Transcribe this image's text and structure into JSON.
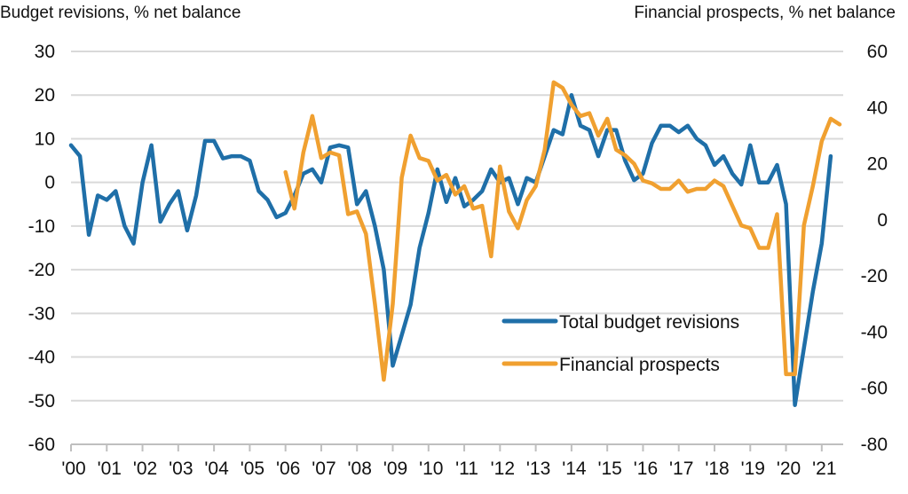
{
  "chart_data": {
    "type": "line",
    "ylabel_left": "Budget revisions, % net balance",
    "ylabel_right": "Financial prospects, % net balance",
    "ylim_left": [
      -60,
      30
    ],
    "ylim_right": [
      -80,
      60
    ],
    "yticks_left": [
      30,
      20,
      10,
      0,
      -10,
      -20,
      -30,
      -40,
      -50,
      -60
    ],
    "yticks_right": [
      60,
      40,
      20,
      0,
      -20,
      -40,
      -60,
      -80
    ],
    "xlim": [
      2000,
      2021.6
    ],
    "xticks": [
      {
        "value": 2000,
        "label": "'00"
      },
      {
        "value": 2001,
        "label": "'01"
      },
      {
        "value": 2002,
        "label": "'02"
      },
      {
        "value": 2003,
        "label": "'03"
      },
      {
        "value": 2004,
        "label": "'04"
      },
      {
        "value": 2005,
        "label": "'05"
      },
      {
        "value": 2006,
        "label": "'06"
      },
      {
        "value": 2007,
        "label": "'07"
      },
      {
        "value": 2008,
        "label": "'08"
      },
      {
        "value": 2009,
        "label": "'09"
      },
      {
        "value": 2010,
        "label": "'10"
      },
      {
        "value": 2011,
        "label": "'11"
      },
      {
        "value": 2012,
        "label": "'12"
      },
      {
        "value": 2013,
        "label": "'13"
      },
      {
        "value": 2014,
        "label": "'14"
      },
      {
        "value": 2015,
        "label": "'15"
      },
      {
        "value": 2016,
        "label": "'16"
      },
      {
        "value": 2017,
        "label": "'17"
      },
      {
        "value": 2018,
        "label": "'18"
      },
      {
        "value": 2019,
        "label": "'19"
      },
      {
        "value": 2020,
        "label": "'20"
      },
      {
        "value": 2021,
        "label": "'21"
      }
    ],
    "grid": "horizontal",
    "legend_position": "lower-right inside plot",
    "series": [
      {
        "name": "Total budget revisions",
        "axis": "left",
        "color": "#1f6fa8",
        "points": [
          [
            2000.0,
            8.5
          ],
          [
            2000.25,
            6
          ],
          [
            2000.5,
            -12
          ],
          [
            2000.75,
            -3
          ],
          [
            2001.0,
            -4
          ],
          [
            2001.25,
            -2
          ],
          [
            2001.5,
            -10
          ],
          [
            2001.75,
            -14
          ],
          [
            2002.0,
            0
          ],
          [
            2002.25,
            8.5
          ],
          [
            2002.5,
            -9
          ],
          [
            2002.75,
            -5
          ],
          [
            2003.0,
            -2
          ],
          [
            2003.25,
            -11
          ],
          [
            2003.5,
            -3
          ],
          [
            2003.75,
            9.5
          ],
          [
            2004.0,
            9.5
          ],
          [
            2004.25,
            5.5
          ],
          [
            2004.5,
            6
          ],
          [
            2004.75,
            6
          ],
          [
            2005.0,
            5
          ],
          [
            2005.25,
            -2
          ],
          [
            2005.5,
            -4
          ],
          [
            2005.75,
            -8
          ],
          [
            2006.0,
            -7
          ],
          [
            2006.25,
            -3
          ],
          [
            2006.5,
            2
          ],
          [
            2006.75,
            3
          ],
          [
            2007.0,
            0
          ],
          [
            2007.25,
            8
          ],
          [
            2007.5,
            8.5
          ],
          [
            2007.75,
            8
          ],
          [
            2008.0,
            -5
          ],
          [
            2008.25,
            -2
          ],
          [
            2008.5,
            -10
          ],
          [
            2008.75,
            -20
          ],
          [
            2009.0,
            -42
          ],
          [
            2009.25,
            -35
          ],
          [
            2009.5,
            -28
          ],
          [
            2009.75,
            -15
          ],
          [
            2010.0,
            -7
          ],
          [
            2010.25,
            3
          ],
          [
            2010.5,
            -4.5
          ],
          [
            2010.75,
            1
          ],
          [
            2011.0,
            -5.5
          ],
          [
            2011.25,
            -4
          ],
          [
            2011.5,
            -2
          ],
          [
            2011.75,
            3
          ],
          [
            2012.0,
            0
          ],
          [
            2012.25,
            1
          ],
          [
            2012.5,
            -5
          ],
          [
            2012.75,
            1
          ],
          [
            2013.0,
            0
          ],
          [
            2013.25,
            6
          ],
          [
            2013.5,
            12
          ],
          [
            2013.75,
            11
          ],
          [
            2014.0,
            20
          ],
          [
            2014.25,
            13
          ],
          [
            2014.5,
            12
          ],
          [
            2014.75,
            6
          ],
          [
            2015.0,
            12
          ],
          [
            2015.25,
            12
          ],
          [
            2015.5,
            5
          ],
          [
            2015.75,
            0.5
          ],
          [
            2016.0,
            2
          ],
          [
            2016.25,
            9
          ],
          [
            2016.5,
            13
          ],
          [
            2016.75,
            13
          ],
          [
            2017.0,
            11.5
          ],
          [
            2017.25,
            13
          ],
          [
            2017.5,
            10
          ],
          [
            2017.75,
            8.5
          ],
          [
            2018.0,
            4
          ],
          [
            2018.25,
            6
          ],
          [
            2018.5,
            2
          ],
          [
            2018.75,
            -0.5
          ],
          [
            2019.0,
            8.5
          ],
          [
            2019.25,
            0
          ],
          [
            2019.5,
            0
          ],
          [
            2019.75,
            4
          ],
          [
            2020.0,
            -5
          ],
          [
            2020.25,
            -51
          ],
          [
            2020.5,
            -38
          ],
          [
            2020.75,
            -25
          ],
          [
            2021.0,
            -14
          ],
          [
            2021.25,
            6
          ]
        ]
      },
      {
        "name": "Financial prospects",
        "axis": "right",
        "color": "#f0a030",
        "points": [
          [
            2006.0,
            17
          ],
          [
            2006.25,
            4
          ],
          [
            2006.5,
            24
          ],
          [
            2006.75,
            37
          ],
          [
            2007.0,
            22
          ],
          [
            2007.25,
            24
          ],
          [
            2007.5,
            23
          ],
          [
            2007.75,
            2
          ],
          [
            2008.0,
            3
          ],
          [
            2008.25,
            -5
          ],
          [
            2008.5,
            -30
          ],
          [
            2008.75,
            -57
          ],
          [
            2009.0,
            -30
          ],
          [
            2009.25,
            15
          ],
          [
            2009.5,
            30
          ],
          [
            2009.75,
            22
          ],
          [
            2010.0,
            21
          ],
          [
            2010.25,
            14
          ],
          [
            2010.5,
            16
          ],
          [
            2010.75,
            9
          ],
          [
            2011.0,
            12
          ],
          [
            2011.25,
            4
          ],
          [
            2011.5,
            5
          ],
          [
            2011.75,
            -13
          ],
          [
            2012.0,
            19
          ],
          [
            2012.25,
            3
          ],
          [
            2012.5,
            -3
          ],
          [
            2012.75,
            7
          ],
          [
            2013.0,
            12
          ],
          [
            2013.25,
            25
          ],
          [
            2013.5,
            49
          ],
          [
            2013.75,
            47
          ],
          [
            2014.0,
            41
          ],
          [
            2014.25,
            37
          ],
          [
            2014.5,
            38
          ],
          [
            2014.75,
            30
          ],
          [
            2015.0,
            36
          ],
          [
            2015.25,
            25
          ],
          [
            2015.5,
            23
          ],
          [
            2015.75,
            20
          ],
          [
            2016.0,
            14
          ],
          [
            2016.25,
            13
          ],
          [
            2016.5,
            11
          ],
          [
            2016.75,
            11
          ],
          [
            2017.0,
            14
          ],
          [
            2017.25,
            10
          ],
          [
            2017.5,
            11
          ],
          [
            2017.75,
            11
          ],
          [
            2018.0,
            14
          ],
          [
            2018.25,
            12
          ],
          [
            2018.5,
            5
          ],
          [
            2018.75,
            -2
          ],
          [
            2019.0,
            -3
          ],
          [
            2019.25,
            -10
          ],
          [
            2019.5,
            -10
          ],
          [
            2019.75,
            2
          ],
          [
            2020.0,
            -55
          ],
          [
            2020.25,
            -55
          ],
          [
            2020.5,
            -2
          ],
          [
            2020.75,
            12
          ],
          [
            2021.0,
            28
          ],
          [
            2021.25,
            36
          ],
          [
            2021.5,
            34
          ]
        ]
      }
    ]
  }
}
